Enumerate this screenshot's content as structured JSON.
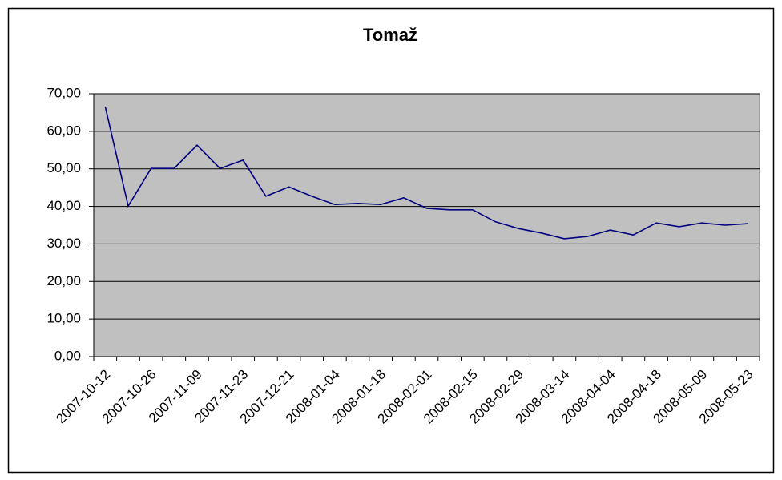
{
  "chart_data": {
    "type": "line",
    "title": "Tomaž",
    "categories": [
      "2007-10-12",
      null,
      "2007-10-26",
      null,
      "2007-11-09",
      null,
      "2007-11-23",
      null,
      "2007-12-21",
      null,
      "2008-01-04",
      null,
      "2008-01-18",
      null,
      "2008-02-01",
      null,
      "2008-02-15",
      null,
      "2008-02-29",
      null,
      "2008-03-14",
      null,
      "2008-04-04",
      null,
      "2008-04-18",
      null,
      "2008-05-09",
      null,
      "2008-05-23"
    ],
    "values": [
      66.6,
      40.1,
      50.1,
      50.1,
      56.3,
      50.1,
      52.3,
      42.7,
      45.2,
      42.7,
      40.5,
      40.8,
      40.5,
      42.3,
      39.5,
      39.1,
      39.1,
      35.9,
      34.1,
      32.9,
      31.4,
      32.0,
      33.7,
      32.4,
      35.6,
      34.6,
      35.6,
      35.0,
      35.4
    ],
    "color": "#000080",
    "ylim": [
      0,
      70
    ],
    "yticks": [
      {
        "value": 0,
        "label": "0,00"
      },
      {
        "value": 10,
        "label": "10,00"
      },
      {
        "value": 20,
        "label": "20,00"
      },
      {
        "value": 30,
        "label": "30,00"
      },
      {
        "value": 40,
        "label": "40,00"
      },
      {
        "value": 50,
        "label": "50,00"
      },
      {
        "value": 60,
        "label": "60,00"
      },
      {
        "value": 70,
        "label": "70,00"
      }
    ],
    "grid": true
  }
}
